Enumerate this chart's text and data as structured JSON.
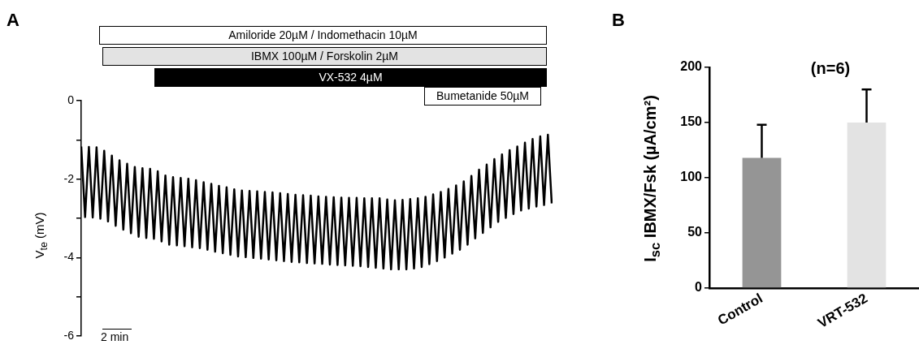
{
  "chart_data": [
    {
      "type": "line",
      "title": "A",
      "ylabel": "V$_{te}$ (mV)",
      "ylim": [
        -6,
        0
      ],
      "yticks": [
        0,
        {
          "value": -1,
          "label": null
        },
        -2,
        {
          "value": -3,
          "label": null
        },
        -4,
        {
          "value": -5,
          "label": null
        },
        -6
      ],
      "tick_labels": "y",
      "grid": false,
      "legend": false,
      "marker": "none",
      "categories": [
        null,
        null,
        null,
        null,
        null,
        null,
        null,
        null,
        null,
        null,
        null,
        null,
        null,
        null,
        null,
        null,
        null,
        null,
        null,
        null,
        null,
        null,
        null,
        null,
        null,
        null,
        null,
        null,
        null,
        null,
        null,
        null,
        null,
        null,
        null,
        null,
        null,
        null,
        null,
        null,
        null,
        null,
        null,
        null,
        null,
        null,
        null,
        null,
        null,
        null,
        null,
        null,
        null,
        null,
        null,
        null,
        null,
        null,
        null,
        null,
        null,
        null,
        null,
        null,
        null,
        null,
        null,
        null,
        null,
        null,
        null,
        null,
        null,
        null,
        null,
        null,
        null,
        null,
        null,
        null,
        null,
        null,
        null,
        null,
        null,
        null,
        null,
        null,
        null,
        null,
        null,
        null,
        null,
        null,
        null,
        null,
        null,
        null,
        null,
        null,
        null,
        null,
        null,
        null,
        null,
        null,
        null,
        null,
        null,
        null,
        null,
        null,
        null,
        null,
        null,
        null,
        null,
        null,
        null,
        null,
        null,
        null,
        null,
        null
      ],
      "series": [
        {
          "color": "#000000",
          "values": [
            -1.17,
            -2.97,
            -1.18,
            -2.98,
            -1.19,
            -3.01,
            -1.28,
            -3.08,
            -1.4,
            -3.19,
            -1.52,
            -3.29,
            -1.61,
            -3.38,
            -1.69,
            -3.47,
            -1.72,
            -3.5,
            -1.74,
            -3.52,
            -1.8,
            -3.59,
            -1.91,
            -3.67,
            -1.95,
            -3.69,
            -1.97,
            -3.71,
            -1.99,
            -3.74,
            -2.03,
            -3.76,
            -2.08,
            -3.8,
            -2.12,
            -3.85,
            -2.17,
            -3.89,
            -2.21,
            -3.93,
            -2.26,
            -3.97,
            -2.29,
            -3.99,
            -2.3,
            -4.01,
            -2.31,
            -4.03,
            -2.33,
            -4.05,
            -2.34,
            -4.07,
            -2.36,
            -4.09,
            -2.38,
            -4.11,
            -2.4,
            -4.12,
            -2.41,
            -4.14,
            -2.42,
            -4.15,
            -2.44,
            -4.16,
            -2.45,
            -4.18,
            -2.46,
            -4.19,
            -2.47,
            -4.2,
            -2.48,
            -4.21,
            -2.48,
            -4.22,
            -2.49,
            -4.24,
            -2.49,
            -4.26,
            -2.49,
            -4.28,
            -2.52,
            -4.3,
            -2.54,
            -4.3,
            -2.53,
            -4.3,
            -2.51,
            -4.28,
            -2.49,
            -4.24,
            -2.45,
            -4.17,
            -2.39,
            -4.09,
            -2.33,
            -4.0,
            -2.25,
            -3.9,
            -2.16,
            -3.8,
            -2.06,
            -3.67,
            -1.92,
            -3.51,
            -1.76,
            -3.37,
            -1.63,
            -3.23,
            -1.49,
            -3.09,
            -1.37,
            -2.99,
            -1.26,
            -2.89,
            -1.17,
            -2.8,
            -1.07,
            -2.75,
            -0.98,
            -2.7,
            -0.91,
            -2.66,
            -0.87,
            -2.62
          ]
        }
      ],
      "annotations": [
        "Amiloride 20µM / Indomethacin 10µM",
        "IBMX 100µM / Forskolin 2µM",
        "VX-532 4µM",
        "Bumetanide 50µM",
        "2 min"
      ]
    },
    {
      "type": "bar",
      "title": "B",
      "ylabel": "I$_{sc}$ IBMX/Fsk (µA/cm²)",
      "categories": [
        "Control",
        "VRT-532"
      ],
      "values": [
        118,
        150
      ],
      "colors": [
        "#959595",
        "#e3e3e3"
      ],
      "errors": [
        [
          118,
          148
        ],
        [
          150,
          180
        ]
      ],
      "ylim": [
        0,
        200
      ],
      "yticks": [
        0,
        50,
        100,
        150,
        200
      ],
      "grid": false,
      "legend": false,
      "annotations": [
        "(n=6)"
      ]
    }
  ]
}
